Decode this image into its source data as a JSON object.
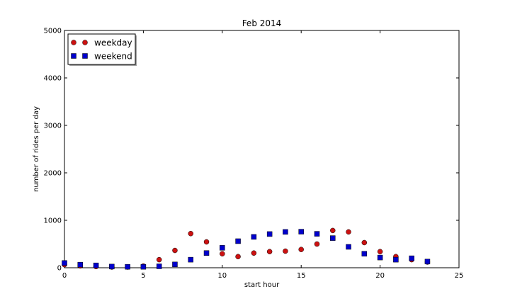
{
  "chart_data": {
    "type": "scatter",
    "title": "Feb 2014",
    "xlabel": "start hour",
    "ylabel": "number of rides per day",
    "xlim": [
      0,
      25
    ],
    "ylim": [
      0,
      5000
    ],
    "xticks": [
      0,
      5,
      10,
      15,
      20,
      25
    ],
    "yticks": [
      0,
      1000,
      2000,
      3000,
      4000,
      5000
    ],
    "grid": false,
    "legend_position": "top-left",
    "series": [
      {
        "name": "weekday",
        "marker": "circle",
        "color": "#cc1111",
        "x": [
          0,
          1,
          2,
          3,
          4,
          5,
          6,
          7,
          8,
          9,
          10,
          11,
          12,
          13,
          14,
          15,
          16,
          17,
          18,
          19,
          20,
          21,
          22,
          23
        ],
        "y": [
          65,
          40,
          25,
          15,
          15,
          35,
          170,
          365,
          720,
          545,
          295,
          235,
          310,
          340,
          350,
          385,
          500,
          785,
          755,
          530,
          340,
          235,
          170,
          120
        ]
      },
      {
        "name": "weekend",
        "marker": "square",
        "color": "#0000cc",
        "x": [
          0,
          1,
          2,
          3,
          4,
          5,
          6,
          7,
          8,
          9,
          10,
          11,
          12,
          13,
          14,
          15,
          16,
          17,
          18,
          19,
          20,
          21,
          22,
          23
        ],
        "y": [
          100,
          65,
          50,
          25,
          20,
          20,
          30,
          70,
          170,
          310,
          420,
          560,
          650,
          710,
          755,
          760,
          715,
          625,
          440,
          295,
          215,
          170,
          200,
          130
        ]
      }
    ]
  }
}
